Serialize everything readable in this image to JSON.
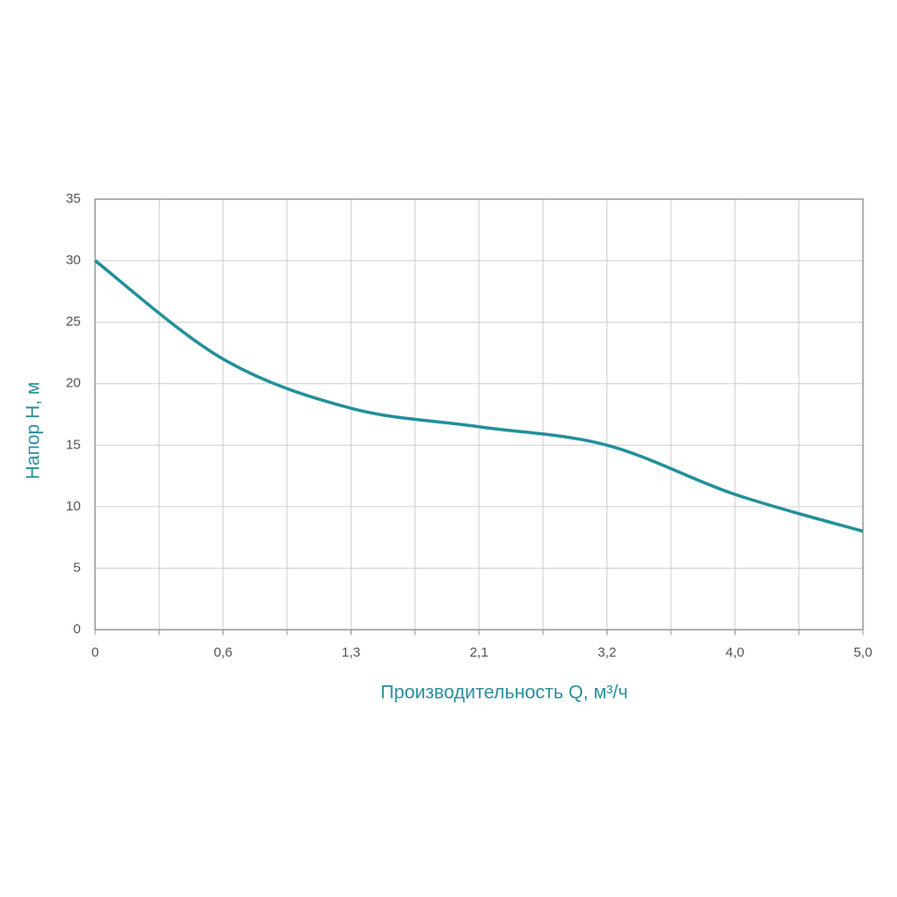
{
  "chart_data": {
    "type": "line",
    "y_label": "Напор H, м",
    "x_label": "Производительность Q, м³/ч",
    "categories": [
      "0",
      "0,6",
      "1,3",
      "2,1",
      "3,2",
      "4,0",
      "5,0"
    ],
    "series": [
      {
        "name": "H",
        "color": "#22909b",
        "values": [
          30,
          22,
          18,
          16.5,
          15,
          11,
          8
        ]
      }
    ],
    "ylim": [
      0,
      35
    ],
    "yticks": [
      0,
      5,
      10,
      15,
      20,
      25,
      30,
      35
    ],
    "grid": true
  }
}
